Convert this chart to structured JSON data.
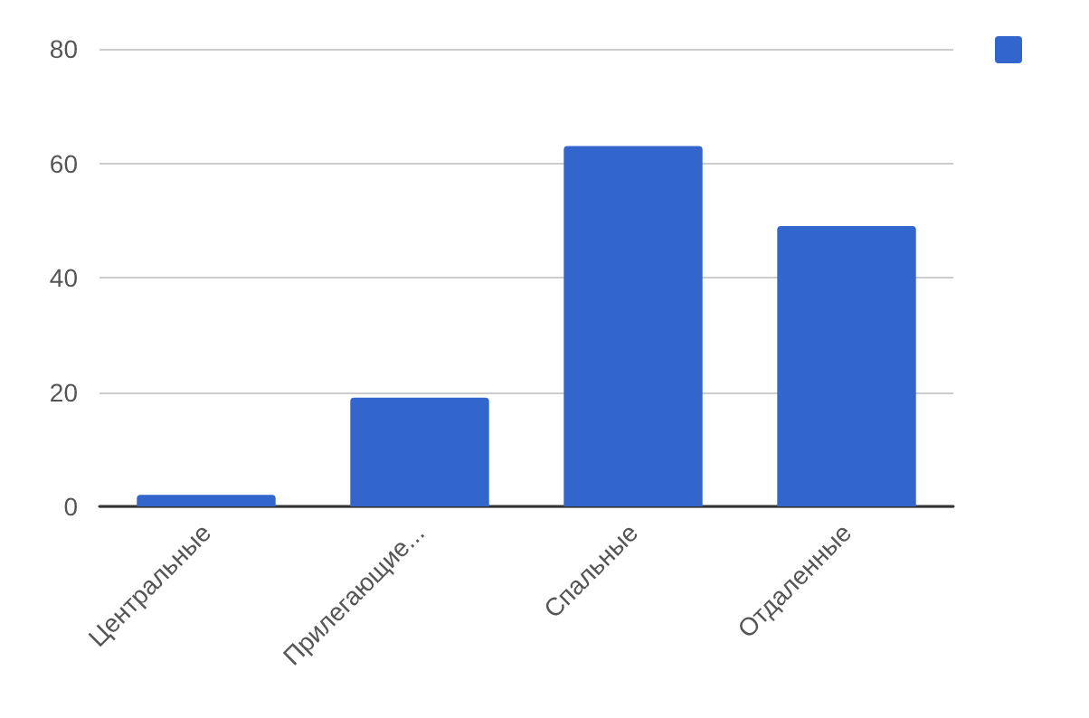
{
  "chart_data": {
    "type": "bar",
    "categories": [
      "Центральные",
      "Прилегающие...",
      "Спальные",
      "Отдаленные"
    ],
    "series": [
      {
        "color": "#3366cc",
        "values": [
          2,
          19,
          63,
          49
        ]
      }
    ],
    "ylim": [
      0,
      80
    ],
    "yticks": [
      0,
      20,
      40,
      60,
      80
    ],
    "grid": "y"
  }
}
